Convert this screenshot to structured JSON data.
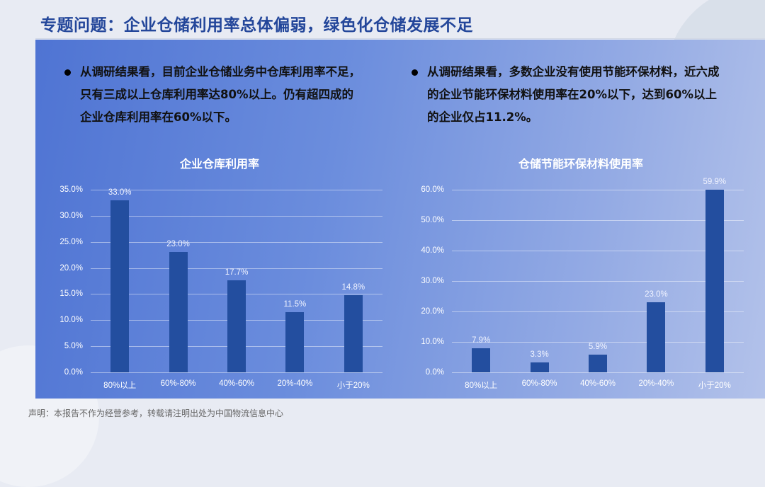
{
  "header": {
    "title": "专题问题：企业仓储利用率总体偏弱，绿色化仓储发展不足"
  },
  "bullets": {
    "left": "从调研结果看，目前企业仓储业务中仓库利用率不足，只有三成以上仓库利用率达80%以上。仍有超四成的企业仓库利用率在60%以下。",
    "right": "从调研结果看，多数企业没有使用节能环保材料，近六成的企业节能环保材料使用率在20%以下，达到60%以上的企业仅占11.2%。"
  },
  "footer": {
    "disclaimer": "声明：本报告不作为经营参考，转载请注明出处为中国物流信息中心"
  },
  "colors": {
    "bar": "#234e9f",
    "title": "#23469a",
    "panel_start": "#4f74d3",
    "panel_end": "#b3c2ea"
  },
  "chart_data": [
    {
      "type": "bar",
      "title": "企业仓库利用率",
      "categories": [
        "80%以上",
        "60%-80%",
        "40%-60%",
        "20%-40%",
        "小于20%"
      ],
      "values": [
        33.0,
        23.0,
        17.7,
        11.5,
        14.8
      ],
      "value_labels": [
        "33.0%",
        "23.0%",
        "17.7%",
        "11.5%",
        "14.8%"
      ],
      "xlabel": "",
      "ylabel": "",
      "ylim": [
        0,
        35
      ],
      "yticks": [
        "0.0%",
        "5.0%",
        "10.0%",
        "15.0%",
        "20.0%",
        "25.0%",
        "30.0%",
        "35.0%"
      ],
      "grid": true,
      "legend": "none"
    },
    {
      "type": "bar",
      "title": "仓储节能环保材料使用率",
      "categories": [
        "80%以上",
        "60%-80%",
        "40%-60%",
        "20%-40%",
        "小于20%"
      ],
      "values": [
        7.9,
        3.3,
        5.9,
        23.0,
        59.9
      ],
      "value_labels": [
        "7.9%",
        "3.3%",
        "5.9%",
        "23.0%",
        "59.9%"
      ],
      "xlabel": "",
      "ylabel": "",
      "ylim": [
        0,
        60
      ],
      "yticks": [
        "0.0%",
        "10.0%",
        "20.0%",
        "30.0%",
        "40.0%",
        "50.0%",
        "60.0%"
      ],
      "grid": true,
      "legend": "none"
    }
  ]
}
